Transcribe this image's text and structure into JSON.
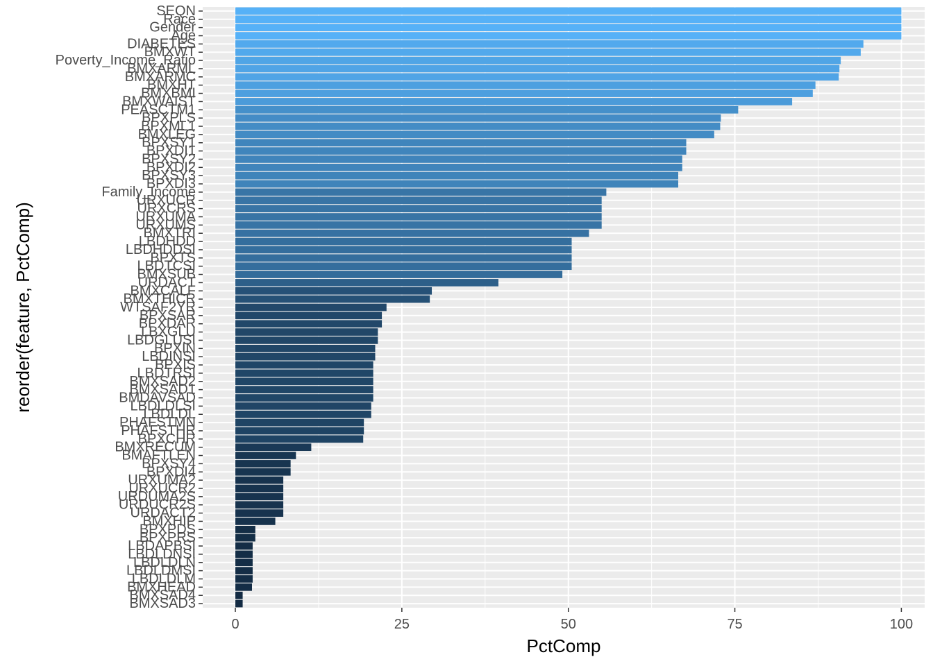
{
  "chart_data": {
    "type": "bar",
    "orientation": "horizontal",
    "xlabel": "PctComp",
    "ylabel": "reorder(feature, PctComp)",
    "xlim": [
      -4.9,
      103.5
    ],
    "xticks": [
      0,
      25,
      50,
      75,
      100
    ],
    "grid": true,
    "legend": "none",
    "colors": {
      "panel_background": "#ebebeb",
      "gridline": "#ffffff",
      "bar_low": "#132b43",
      "bar_high": "#56b1f7"
    },
    "categories": [
      "SEQN",
      "Race",
      "Gender",
      "Age",
      "DIABETES",
      "BMXWT",
      "Poverty_Income_Ratio",
      "BMXARML",
      "BMXARMC",
      "BMXHT",
      "BMXBMI",
      "BMXWAIST",
      "PEASCTM1",
      "BPXPLS",
      "BPXML1",
      "BMXLEG",
      "BPXSY1",
      "BPXDI1",
      "BPXSY2",
      "BPXDI2",
      "BPXSY3",
      "BPXDI3",
      "Family_Income",
      "URXUCR",
      "URXCRS",
      "URXUMA",
      "URXUMS",
      "BMXTRI",
      "LBDHDD",
      "LBDHDDSI",
      "BPXTS",
      "LBDTCSI",
      "BMXSUB",
      "URDACT",
      "BMXCALF",
      "BMXTHICR",
      "WTSAF2YR",
      "BPXSAR",
      "BPXDAR",
      "LBXGLU",
      "LBDGLUSI",
      "BPXIN",
      "LBDINSI",
      "BPXIS",
      "LBDTRSI",
      "BMXSAD2",
      "BMXSAD1",
      "BMDAVSAD",
      "LBDLDLSI",
      "LBDLDL",
      "PHAFSTMN",
      "PHAFSTHR",
      "BPXCHR",
      "BMXRECUM",
      "BMAFTLEN",
      "BPXSY4",
      "BPXDI4",
      "URXUMA2",
      "URXUCR2",
      "URDUMA2S",
      "URDUCR2S",
      "URDACT2",
      "BMXHIP",
      "BPXPDS",
      "BPXPRS",
      "LBDAPBSI",
      "LBDLDNSI",
      "LBDLDLN",
      "LBDLDMSI",
      "LBDLDLM",
      "BMXHEAD",
      "BMXSAD4",
      "BMXSAD3"
    ],
    "values": [
      100,
      100,
      100,
      100,
      94.3,
      93.9,
      90.9,
      90.7,
      90.6,
      87.1,
      86.7,
      83.6,
      75.5,
      72.9,
      72.8,
      71.9,
      67.7,
      67.7,
      67.1,
      67.1,
      66.5,
      66.5,
      55.7,
      55.0,
      55.0,
      55.0,
      55.0,
      53.1,
      50.5,
      50.5,
      50.5,
      50.5,
      49.1,
      39.5,
      29.5,
      29.2,
      22.7,
      22.0,
      22.0,
      21.4,
      21.4,
      21.0,
      21.0,
      20.7,
      20.7,
      20.7,
      20.7,
      20.7,
      20.4,
      20.4,
      19.3,
      19.3,
      19.2,
      11.4,
      9.1,
      8.3,
      8.3,
      7.2,
      7.2,
      7.2,
      7.2,
      7.2,
      6.0,
      3.0,
      3.0,
      2.6,
      2.6,
      2.6,
      2.6,
      2.6,
      2.5,
      1.1,
      1.1
    ]
  }
}
